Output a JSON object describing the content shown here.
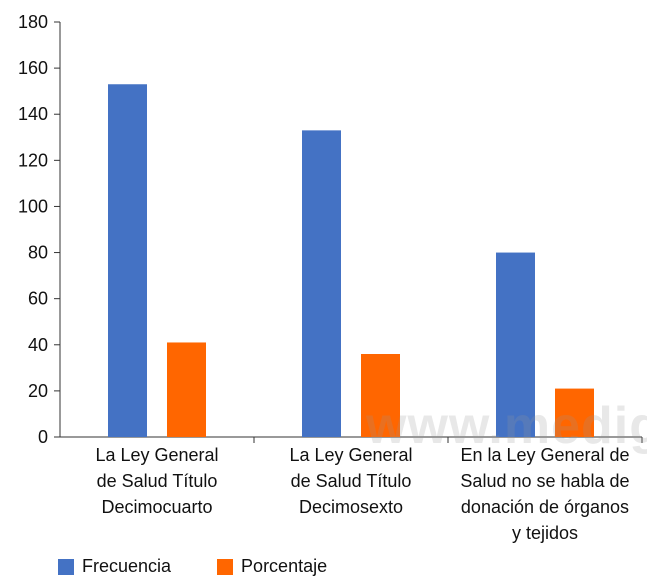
{
  "chart_data": {
    "type": "bar",
    "categories": [
      [
        "La Ley General",
        "de Salud Título",
        "Decimocuarto"
      ],
      [
        "La Ley General",
        "de Salud Título",
        "Decimosexto"
      ],
      [
        "En la Ley General de",
        "Salud  no se habla de",
        "donación de órganos",
        "y tejidos"
      ]
    ],
    "series": [
      {
        "name": "Frecuencia",
        "values": [
          153,
          133,
          80
        ],
        "color": "#4472C4"
      },
      {
        "name": "Porcentaje",
        "values": [
          41,
          36,
          21
        ],
        "color": "#FF6600"
      }
    ],
    "ylim": [
      0,
      180
    ],
    "yticks": [
      0,
      20,
      40,
      60,
      80,
      100,
      120,
      140,
      160,
      180
    ],
    "grid": false,
    "legend_placement": "bottom-left"
  },
  "watermark": "www.medig"
}
